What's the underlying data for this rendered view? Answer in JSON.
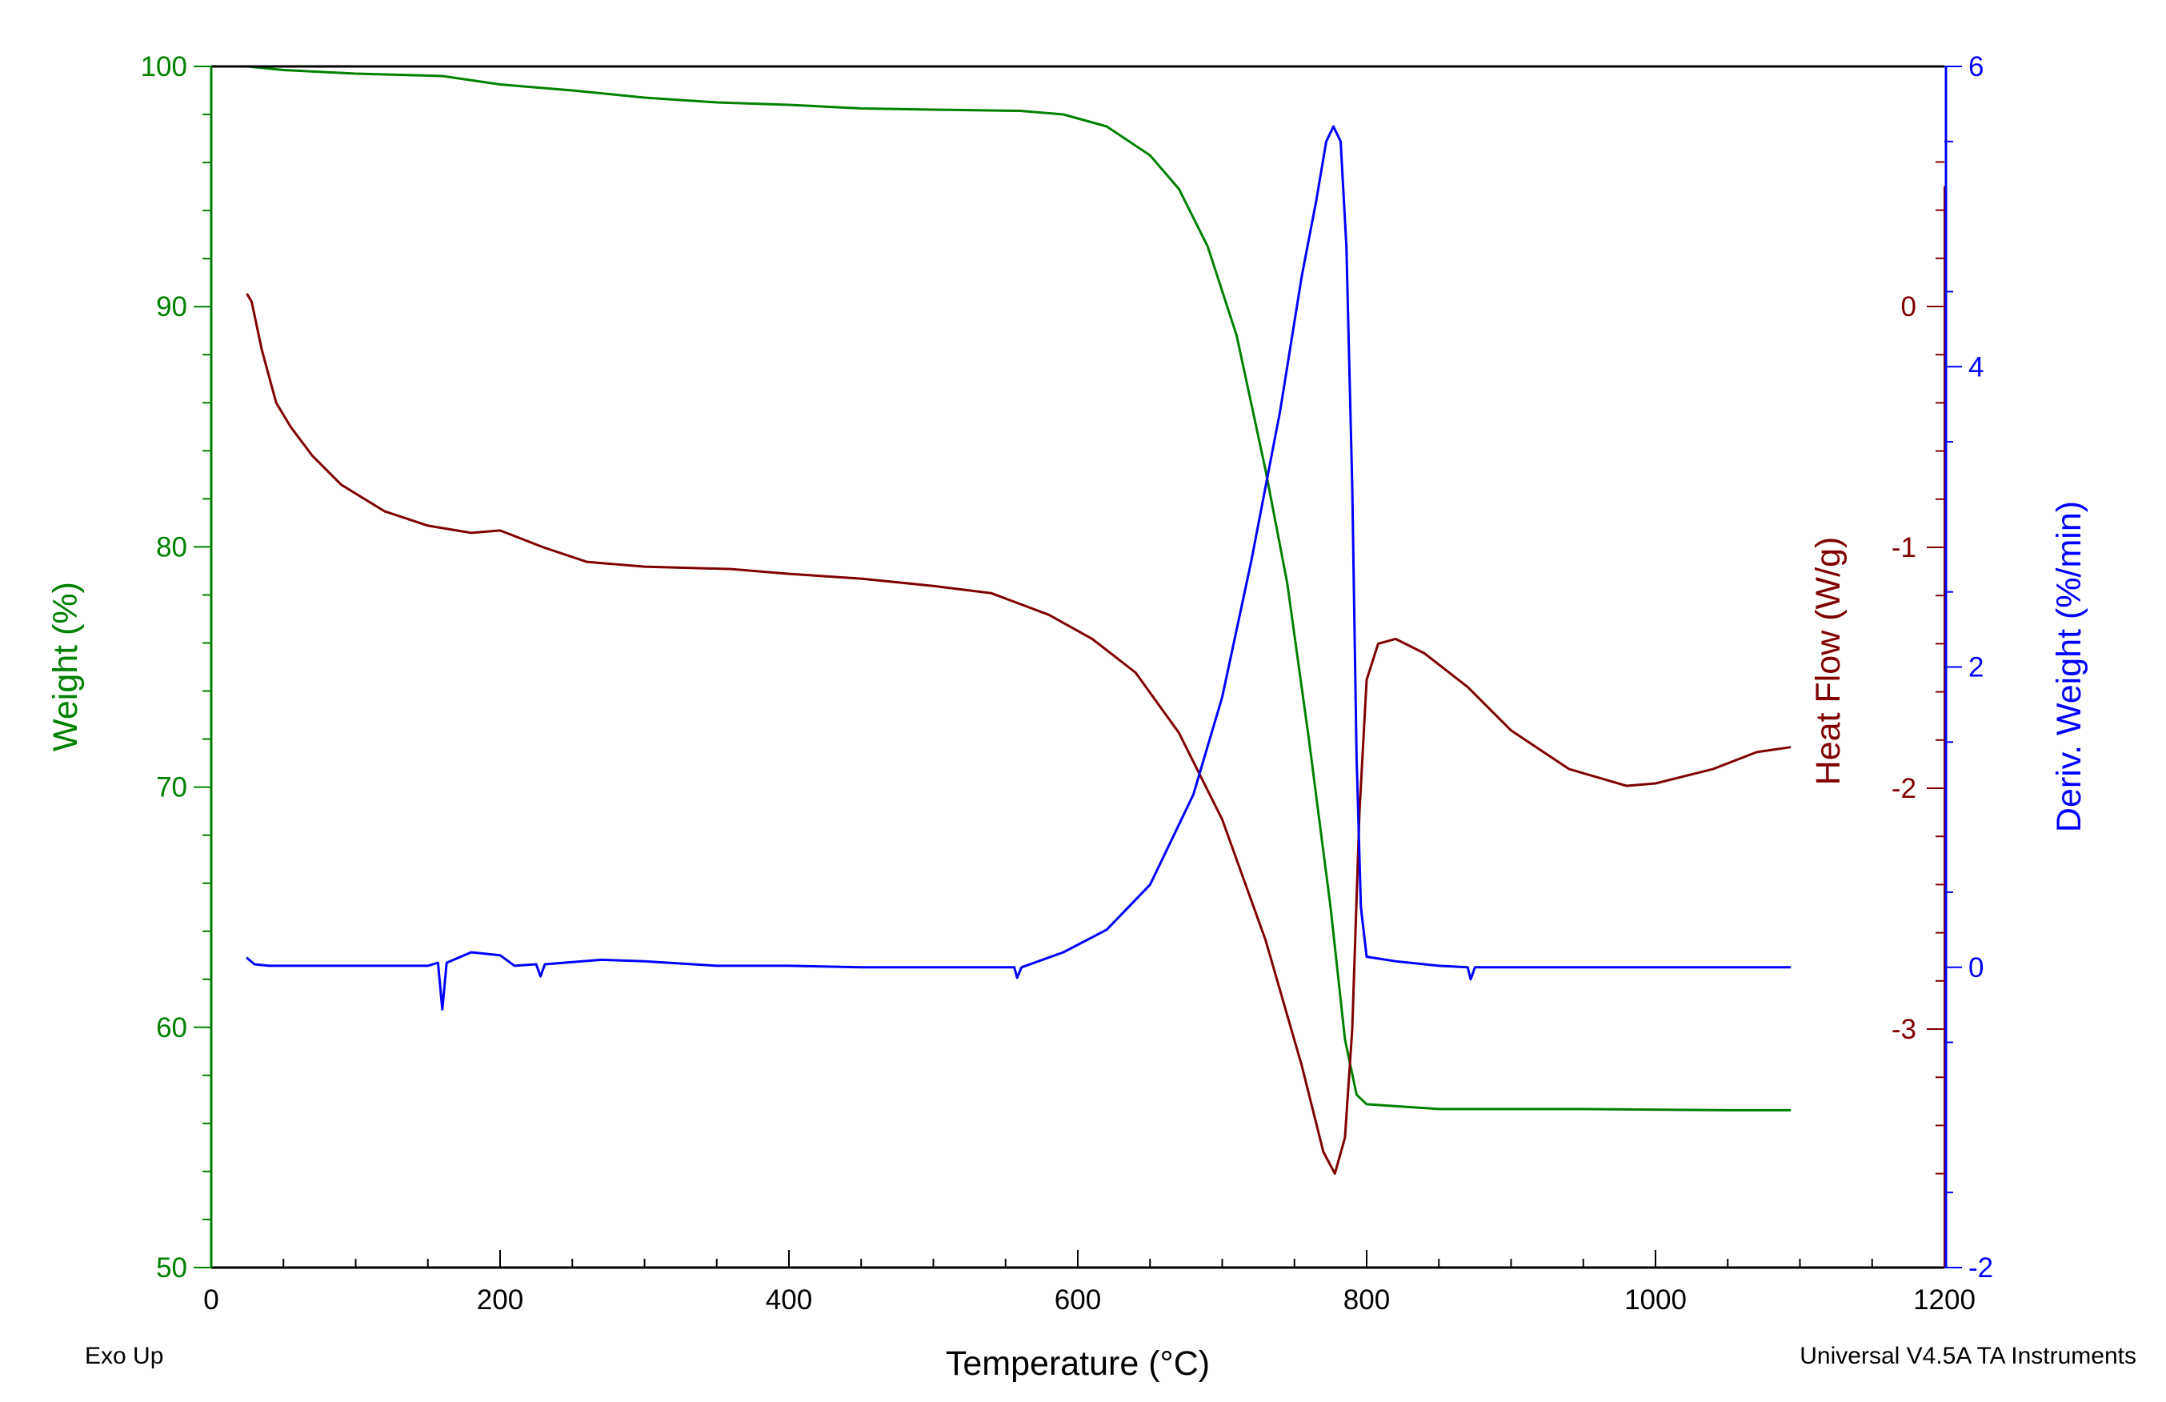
{
  "chart_data": {
    "type": "line",
    "xlabel": "Temperature (°C)",
    "footer_left": "Exo Up",
    "footer_right": "Universal V4.5A TA Instruments",
    "colors": {
      "weight": "#008000",
      "heat_flow": "#800000",
      "deriv": "#0000ff",
      "frame": "#000000"
    },
    "x_axis": {
      "range": [
        0,
        1200
      ],
      "ticks": [
        0,
        200,
        400,
        600,
        800,
        1000,
        1200
      ],
      "tick_labels": [
        "0",
        "200",
        "400",
        "600",
        "800",
        "1000",
        "1200"
      ]
    },
    "y_left": {
      "label": "Weight (%)",
      "range": [
        50,
        100
      ],
      "ticks": [
        50,
        60,
        70,
        80,
        90,
        100
      ],
      "tick_labels": [
        "50",
        "60",
        "70",
        "80",
        "90",
        "100"
      ]
    },
    "y_right_1": {
      "label": "Heat Flow (W/g)",
      "ticks": [
        -3,
        -2,
        -1,
        0
      ],
      "tick_labels": [
        "-3",
        "-2",
        "-1",
        "0"
      ]
    },
    "y_right_2": {
      "label": "Deriv. Weight (%/min)",
      "range": [
        -2,
        6
      ],
      "ticks": [
        -2,
        0,
        2,
        4,
        6
      ],
      "tick_labels": [
        "-2",
        "0",
        "2",
        "4",
        "6"
      ]
    },
    "series": [
      {
        "name": "Weight (%)",
        "axis": "y_left",
        "points": [
          [
            25,
            100.0
          ],
          [
            50,
            99.85
          ],
          [
            100,
            99.7
          ],
          [
            160,
            99.6
          ],
          [
            200,
            99.25
          ],
          [
            250,
            99.0
          ],
          [
            300,
            98.7
          ],
          [
            350,
            98.5
          ],
          [
            400,
            98.4
          ],
          [
            450,
            98.25
          ],
          [
            500,
            98.2
          ],
          [
            560,
            98.15
          ],
          [
            590,
            98.0
          ],
          [
            620,
            97.5
          ],
          [
            650,
            96.3
          ],
          [
            670,
            94.9
          ],
          [
            690,
            92.5
          ],
          [
            710,
            88.8
          ],
          [
            730,
            83.2
          ],
          [
            745,
            78.5
          ],
          [
            760,
            72.0
          ],
          [
            775,
            65.0
          ],
          [
            785,
            59.5
          ],
          [
            793,
            57.2
          ],
          [
            800,
            56.8
          ],
          [
            850,
            56.6
          ],
          [
            950,
            56.6
          ],
          [
            1050,
            56.55
          ],
          [
            1093,
            56.55
          ]
        ]
      },
      {
        "name": "Heat Flow (W/g)",
        "axis": "y_right_1",
        "points": [
          [
            25,
            0.05
          ],
          [
            28,
            0.02
          ],
          [
            35,
            -0.18
          ],
          [
            45,
            -0.4
          ],
          [
            55,
            -0.5
          ],
          [
            70,
            -0.62
          ],
          [
            90,
            -0.74
          ],
          [
            120,
            -0.85
          ],
          [
            150,
            -0.91
          ],
          [
            180,
            -0.94
          ],
          [
            200,
            -0.93
          ],
          [
            230,
            -1.0
          ],
          [
            260,
            -1.06
          ],
          [
            300,
            -1.08
          ],
          [
            360,
            -1.09
          ],
          [
            400,
            -1.11
          ],
          [
            450,
            -1.13
          ],
          [
            500,
            -1.16
          ],
          [
            540,
            -1.19
          ],
          [
            580,
            -1.28
          ],
          [
            610,
            -1.38
          ],
          [
            640,
            -1.52
          ],
          [
            670,
            -1.77
          ],
          [
            700,
            -2.13
          ],
          [
            730,
            -2.63
          ],
          [
            755,
            -3.15
          ],
          [
            770,
            -3.51
          ],
          [
            778,
            -3.6
          ],
          [
            785,
            -3.45
          ],
          [
            790,
            -3.0
          ],
          [
            795,
            -2.1
          ],
          [
            800,
            -1.55
          ],
          [
            808,
            -1.4
          ],
          [
            820,
            -1.38
          ],
          [
            840,
            -1.44
          ],
          [
            870,
            -1.58
          ],
          [
            900,
            -1.76
          ],
          [
            940,
            -1.92
          ],
          [
            980,
            -1.99
          ],
          [
            1000,
            -1.98
          ],
          [
            1040,
            -1.92
          ],
          [
            1070,
            -1.85
          ],
          [
            1093,
            -1.83
          ]
        ]
      },
      {
        "name": "Deriv. Weight (%/min)",
        "axis": "y_right_2",
        "points": [
          [
            25,
            0.06
          ],
          [
            30,
            0.02
          ],
          [
            40,
            0.01
          ],
          [
            100,
            0.01
          ],
          [
            150,
            0.01
          ],
          [
            157,
            0.03
          ],
          [
            160,
            -0.28
          ],
          [
            163,
            0.03
          ],
          [
            180,
            0.1
          ],
          [
            200,
            0.08
          ],
          [
            210,
            0.01
          ],
          [
            225,
            0.02
          ],
          [
            228,
            -0.06
          ],
          [
            231,
            0.02
          ],
          [
            270,
            0.05
          ],
          [
            300,
            0.04
          ],
          [
            350,
            0.01
          ],
          [
            400,
            0.01
          ],
          [
            450,
            0.0
          ],
          [
            500,
            0.0
          ],
          [
            556,
            0.0
          ],
          [
            558,
            -0.07
          ],
          [
            561,
            0.0
          ],
          [
            590,
            0.1
          ],
          [
            620,
            0.25
          ],
          [
            650,
            0.55
          ],
          [
            680,
            1.15
          ],
          [
            700,
            1.8
          ],
          [
            720,
            2.7
          ],
          [
            740,
            3.7
          ],
          [
            755,
            4.6
          ],
          [
            765,
            5.1
          ],
          [
            772,
            5.5
          ],
          [
            777,
            5.6
          ],
          [
            782,
            5.5
          ],
          [
            786,
            4.8
          ],
          [
            790,
            3.2
          ],
          [
            793,
            1.4
          ],
          [
            796,
            0.4
          ],
          [
            800,
            0.07
          ],
          [
            820,
            0.04
          ],
          [
            850,
            0.01
          ],
          [
            870,
            0.0
          ],
          [
            872,
            -0.08
          ],
          [
            875,
            0.0
          ],
          [
            950,
            0.0
          ],
          [
            1000,
            0.0
          ],
          [
            1050,
            0.0
          ],
          [
            1093,
            0.0
          ]
        ]
      }
    ]
  }
}
